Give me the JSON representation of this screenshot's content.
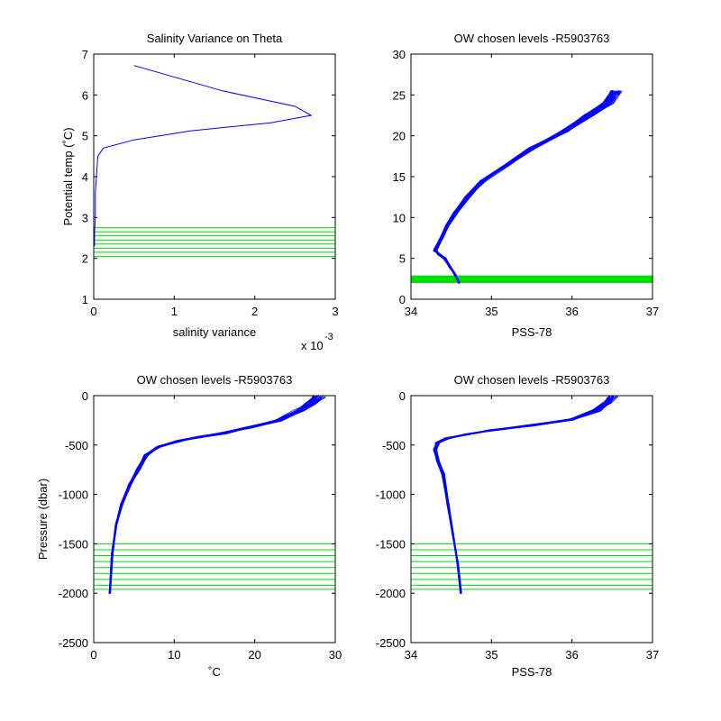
{
  "colors": {
    "profile": "#0000ff",
    "levels": "#00dd00",
    "axes": "#000000",
    "background": "#ffffff"
  },
  "chart_data": [
    {
      "type": "line",
      "title": "Salinity Variance on Theta",
      "xlabel": "salinity variance",
      "ylabel": "Potential temp (˚C)",
      "xlim": [
        0,
        3
      ],
      "ylim": [
        1,
        7
      ],
      "xticks": [
        "0",
        "1",
        "2",
        "3"
      ],
      "yticks": [
        "1",
        "2",
        "3",
        "4",
        "5",
        "6",
        "7"
      ],
      "x_exponent": {
        "base": "x 10",
        "power": "-3"
      },
      "series": [
        {
          "x": [
            0.5,
            1.6,
            2.5,
            2.7,
            2.2,
            1.2,
            0.5,
            0.12,
            0.05,
            0.04,
            0.02,
            0.02,
            0.01,
            0.01
          ],
          "y": [
            6.72,
            6.1,
            5.72,
            5.5,
            5.32,
            5.12,
            4.9,
            4.7,
            4.5,
            4.2,
            3.6,
            3.0,
            2.6,
            2.3
          ]
        }
      ],
      "hlines": [
        2.05,
        2.15,
        2.25,
        2.35,
        2.45,
        2.55,
        2.65,
        2.75
      ],
      "grid": false
    },
    {
      "type": "line",
      "title": "OW chosen levels -R5903763",
      "xlabel": "PSS-78",
      "ylabel": "",
      "xlim": [
        34,
        37
      ],
      "ylim": [
        0,
        30
      ],
      "xticks": [
        "34",
        "35",
        "36",
        "37"
      ],
      "yticks": [
        "0",
        "5",
        "10",
        "15",
        "20",
        "25",
        "30"
      ],
      "profile": {
        "x": [
          34.6,
          34.55,
          34.48,
          34.42,
          34.35,
          34.3,
          34.38,
          34.45,
          34.55,
          34.7,
          34.9,
          35.2,
          35.5,
          35.9,
          36.2,
          36.45,
          36.55
        ],
        "y": [
          2.0,
          3.0,
          4.0,
          5.0,
          5.5,
          6.0,
          7.5,
          9.0,
          10.5,
          12.5,
          14.5,
          16.5,
          18.5,
          20.5,
          22.5,
          24.0,
          25.5
        ]
      },
      "hlines": [
        2.1,
        2.2,
        2.3,
        2.4,
        2.5,
        2.6,
        2.7,
        2.8
      ],
      "grid": false
    },
    {
      "type": "line",
      "title": "OW chosen levels -R5903763",
      "xlabel": "˚C",
      "ylabel": "Pressure (dbar)",
      "xlim": [
        0,
        30
      ],
      "ylim": [
        -2500,
        0
      ],
      "xticks": [
        "0",
        "10",
        "20",
        "30"
      ],
      "yticks": [
        "-2500",
        "-2000",
        "-1500",
        "-1000",
        "-500",
        "0"
      ],
      "profile": {
        "x": [
          2.0,
          2.3,
          2.8,
          3.5,
          4.5,
          5.5,
          6.5,
          8.0,
          10.5,
          13.0,
          16.0,
          19.5,
          23.0,
          25.5,
          27.0,
          28.0
        ],
        "y": [
          -2000,
          -1600,
          -1300,
          -1100,
          -900,
          -750,
          -600,
          -520,
          -460,
          -420,
          -380,
          -320,
          -250,
          -150,
          -80,
          -10
        ]
      },
      "hlines": [
        -1500,
        -1560,
        -1620,
        -1680,
        -1740,
        -1800,
        -1860,
        -1920,
        -1960
      ],
      "grid": false
    },
    {
      "type": "line",
      "title": "OW chosen levels -R5903763",
      "xlabel": "PSS-78",
      "ylabel": "",
      "xlim": [
        34,
        37
      ],
      "ylim": [
        -2500,
        0
      ],
      "xticks": [
        "34",
        "35",
        "36",
        "37"
      ],
      "yticks": [
        "-2500",
        "-2000",
        "-1500",
        "-1000",
        "-500",
        "0"
      ],
      "profile": {
        "x": [
          34.62,
          34.58,
          34.52,
          34.46,
          34.4,
          34.33,
          34.3,
          34.33,
          34.45,
          34.7,
          35.0,
          35.5,
          36.0,
          36.3,
          36.45,
          36.5
        ],
        "y": [
          -2000,
          -1700,
          -1400,
          -1100,
          -800,
          -650,
          -550,
          -480,
          -430,
          -390,
          -350,
          -300,
          -240,
          -150,
          -70,
          -10
        ]
      },
      "hlines": [
        -1500,
        -1560,
        -1620,
        -1680,
        -1740,
        -1800,
        -1860,
        -1920,
        -1960
      ],
      "grid": false
    }
  ]
}
